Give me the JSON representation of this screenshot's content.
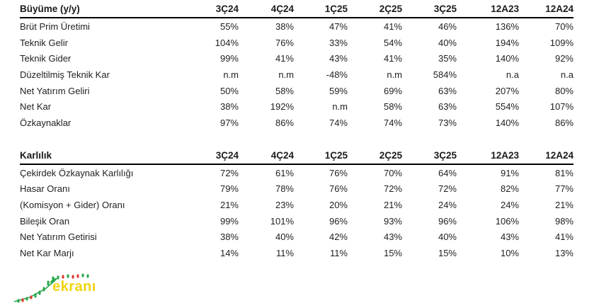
{
  "tables": [
    {
      "title": "Büyüme (y/y)",
      "columns": [
        "3Ç24",
        "4Ç24",
        "1Ç25",
        "2Ç25",
        "3Ç25",
        "12A23",
        "12A24"
      ],
      "rows": [
        {
          "label": "Brüt Prim Üretimi",
          "values": [
            "55%",
            "38%",
            "47%",
            "41%",
            "46%",
            "136%",
            "70%"
          ]
        },
        {
          "label": "Teknik Gelir",
          "values": [
            "104%",
            "76%",
            "33%",
            "54%",
            "40%",
            "194%",
            "109%"
          ]
        },
        {
          "label": "Teknik Gider",
          "values": [
            "99%",
            "41%",
            "43%",
            "41%",
            "35%",
            "140%",
            "92%"
          ]
        },
        {
          "label": "Düzeltilmiş Teknik Kar",
          "values": [
            "n.m",
            "n.m",
            "-48%",
            "n.m",
            "584%",
            "n.a",
            "n.a"
          ]
        },
        {
          "label": "Net Yatırım Geliri",
          "values": [
            "50%",
            "58%",
            "59%",
            "69%",
            "63%",
            "207%",
            "80%"
          ]
        },
        {
          "label": "Net Kar",
          "values": [
            "38%",
            "192%",
            "n.m",
            "58%",
            "63%",
            "554%",
            "107%"
          ]
        },
        {
          "label": "Özkaynaklar",
          "values": [
            "97%",
            "86%",
            "74%",
            "74%",
            "73%",
            "140%",
            "86%"
          ]
        }
      ]
    },
    {
      "title": "Karlılık",
      "columns": [
        "3Ç24",
        "4Ç24",
        "1Ç25",
        "2Ç25",
        "3Ç25",
        "12A23",
        "12A24"
      ],
      "rows": [
        {
          "label": "Çekirdek Özkaynak Karlılığı",
          "values": [
            "72%",
            "61%",
            "76%",
            "70%",
            "64%",
            "91%",
            "81%"
          ]
        },
        {
          "label": "Hasar Oranı",
          "values": [
            "79%",
            "78%",
            "76%",
            "72%",
            "72%",
            "82%",
            "77%"
          ]
        },
        {
          "label": "(Komisyon + Gider) Oranı",
          "values": [
            "21%",
            "23%",
            "20%",
            "21%",
            "24%",
            "24%",
            "21%"
          ]
        },
        {
          "label": "Bileşik Oran",
          "values": [
            "99%",
            "101%",
            "96%",
            "93%",
            "96%",
            "106%",
            "98%"
          ]
        },
        {
          "label": "Net Yatırım Getirisi",
          "values": [
            "38%",
            "40%",
            "42%",
            "43%",
            "40%",
            "43%",
            "41%"
          ]
        },
        {
          "label": "Net Kar Marjı",
          "values": [
            "14%",
            "11%",
            "11%",
            "15%",
            "15%",
            "10%",
            "13%"
          ]
        }
      ]
    }
  ],
  "logo": {
    "text": "ekranı",
    "text_color": "#f0d313",
    "candle_up_color": "#2aa84e",
    "candle_down_color": "#dd3b2e"
  }
}
